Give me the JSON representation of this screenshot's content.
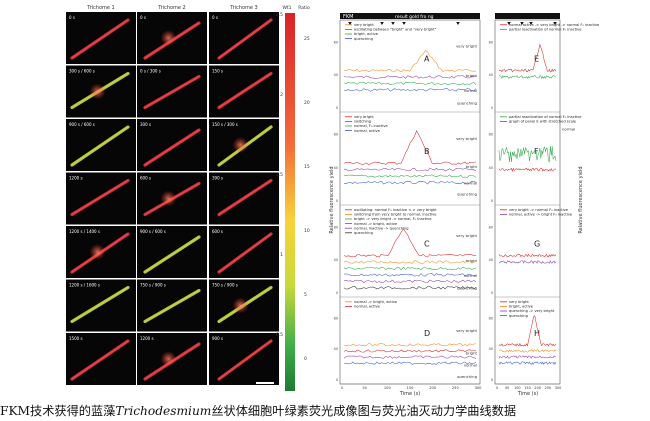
{
  "micrographs": {
    "column_titles": [
      "Trichome 1",
      "Trichome 2",
      "Trichome 3"
    ],
    "time_labels": [
      [
        "0 s",
        "0 s",
        "0 s"
      ],
      [
        "300 s / 600 s",
        "0 s / 300 s",
        "150 s"
      ],
      [
        "900 s / 600 s",
        "300 s",
        "150 s / 300 s"
      ],
      [
        "1200 s",
        "600 s",
        "390 s"
      ],
      [
        "1200 s / 1400 s",
        "900 s / 600 s",
        "600 s"
      ],
      [
        "1200 s / 1600 s",
        "750 s / 900 s",
        "750 s / 900 s"
      ],
      [
        "1500 s",
        "1200 s",
        "900 s"
      ]
    ]
  },
  "colorbar": {
    "header_left": "Wt1",
    "header_right": "Ratio",
    "left_ticks": [
      "2.5",
      "2",
      "1.5",
      "1",
      "0.5"
    ],
    "right_ticks": [
      "25",
      "20",
      "15",
      "10",
      "5",
      "0"
    ]
  },
  "plots": {
    "flkm_label": "FKM",
    "top_axis_label": "result gold fro ng",
    "y_label_left": "Relative fluorescence yield",
    "y_label_right": "Relative fluorescence yield",
    "x_label": "Time (s)",
    "x_ticks": [
      "0",
      "50",
      "100",
      "150",
      "200",
      "250",
      "300"
    ],
    "x_ticks_right": [
      "0",
      "50",
      "100",
      "150",
      "200",
      "250",
      "300"
    ],
    "y_ticks": [
      "0",
      "20",
      "40",
      "60",
      "80",
      "100"
    ],
    "levels": {
      "very_bright": "very bright",
      "bright": "bright",
      "normal": "normal",
      "quenching": "quenching"
    },
    "panels": {
      "A": {
        "letter": "A",
        "legend": [
          "very bright",
          "oscillating between \"bright\" and \"very bright\"",
          "bright, active",
          "quenching"
        ]
      },
      "B": {
        "letter": "B",
        "legend": [
          "very bright",
          "switching",
          "normal, F₀ inactive",
          "normal, active"
        ]
      },
      "C": {
        "letter": "C",
        "legend": [
          "oscillating: normal F₀ inactive <-> very bright",
          "switching from very bright to normal, inactive",
          "bright -> very bright -> normal, F₀ inactive",
          "normal -> bright, active",
          "normal, inactive -> quenching",
          "quenching"
        ]
      },
      "D": {
        "letter": "D",
        "legend": [
          "normal -> bright, active",
          "normal, active"
        ]
      },
      "E": {
        "letter": "E",
        "legend": [
          "normal active -> very bright -> normal F₀ inactive",
          "partial reactivation of normal F₀ inactive"
        ]
      },
      "F": {
        "letter": "F",
        "legend": [
          "partial reactivation of normal F₀ inactive",
          "graph of panel E with stretched scale"
        ],
        "right_label": "normal"
      },
      "G": {
        "letter": "G",
        "legend": [
          "very bright -> normal F₀ inactive",
          "normal, active -> bright F₀ inactive"
        ]
      },
      "H": {
        "letter": "H",
        "legend": [
          "very bright",
          "bright, active",
          "quenching -> very bright",
          "quenching"
        ]
      }
    },
    "colors": {
      "red": "#d9262b",
      "orange": "#f08b1a",
      "green": "#2fa84a",
      "blue": "#3a5fcd",
      "purple": "#8a3fa8",
      "dark": "#333333"
    }
  },
  "caption": {
    "prefix": "FKM技术获得的蓝藻",
    "species": "Trichodesmium",
    "suffix": "丝状体细胞叶绿素荧光成像图与荧光油灭动力学曲线数据"
  }
}
